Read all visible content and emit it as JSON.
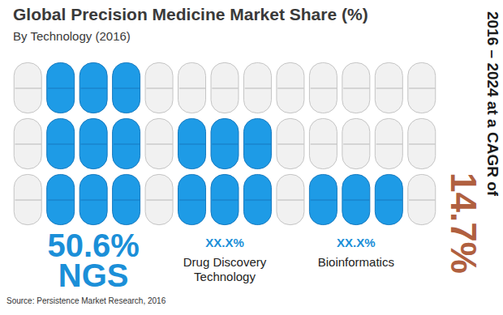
{
  "chart_data": {
    "type": "pictogram",
    "title": "Global Precision Medicine Market Share (%)",
    "subtitle": "By Technology (2016)",
    "categories": [
      "NGS",
      "Drug Discovery Technology",
      "Bioinformatics"
    ],
    "values": [
      50.6,
      null,
      null
    ],
    "value_labels": [
      "50.6%",
      "XX.X%",
      "XX.X%"
    ],
    "pill_rows": [
      3,
      2,
      1
    ],
    "color": "#1e9be6",
    "data_labels": true,
    "annotation": {
      "text": "2016 – 2024 at a CAGR of",
      "value_label": "14.7%"
    },
    "source": "Source: Persistence Market Research, 2016"
  }
}
